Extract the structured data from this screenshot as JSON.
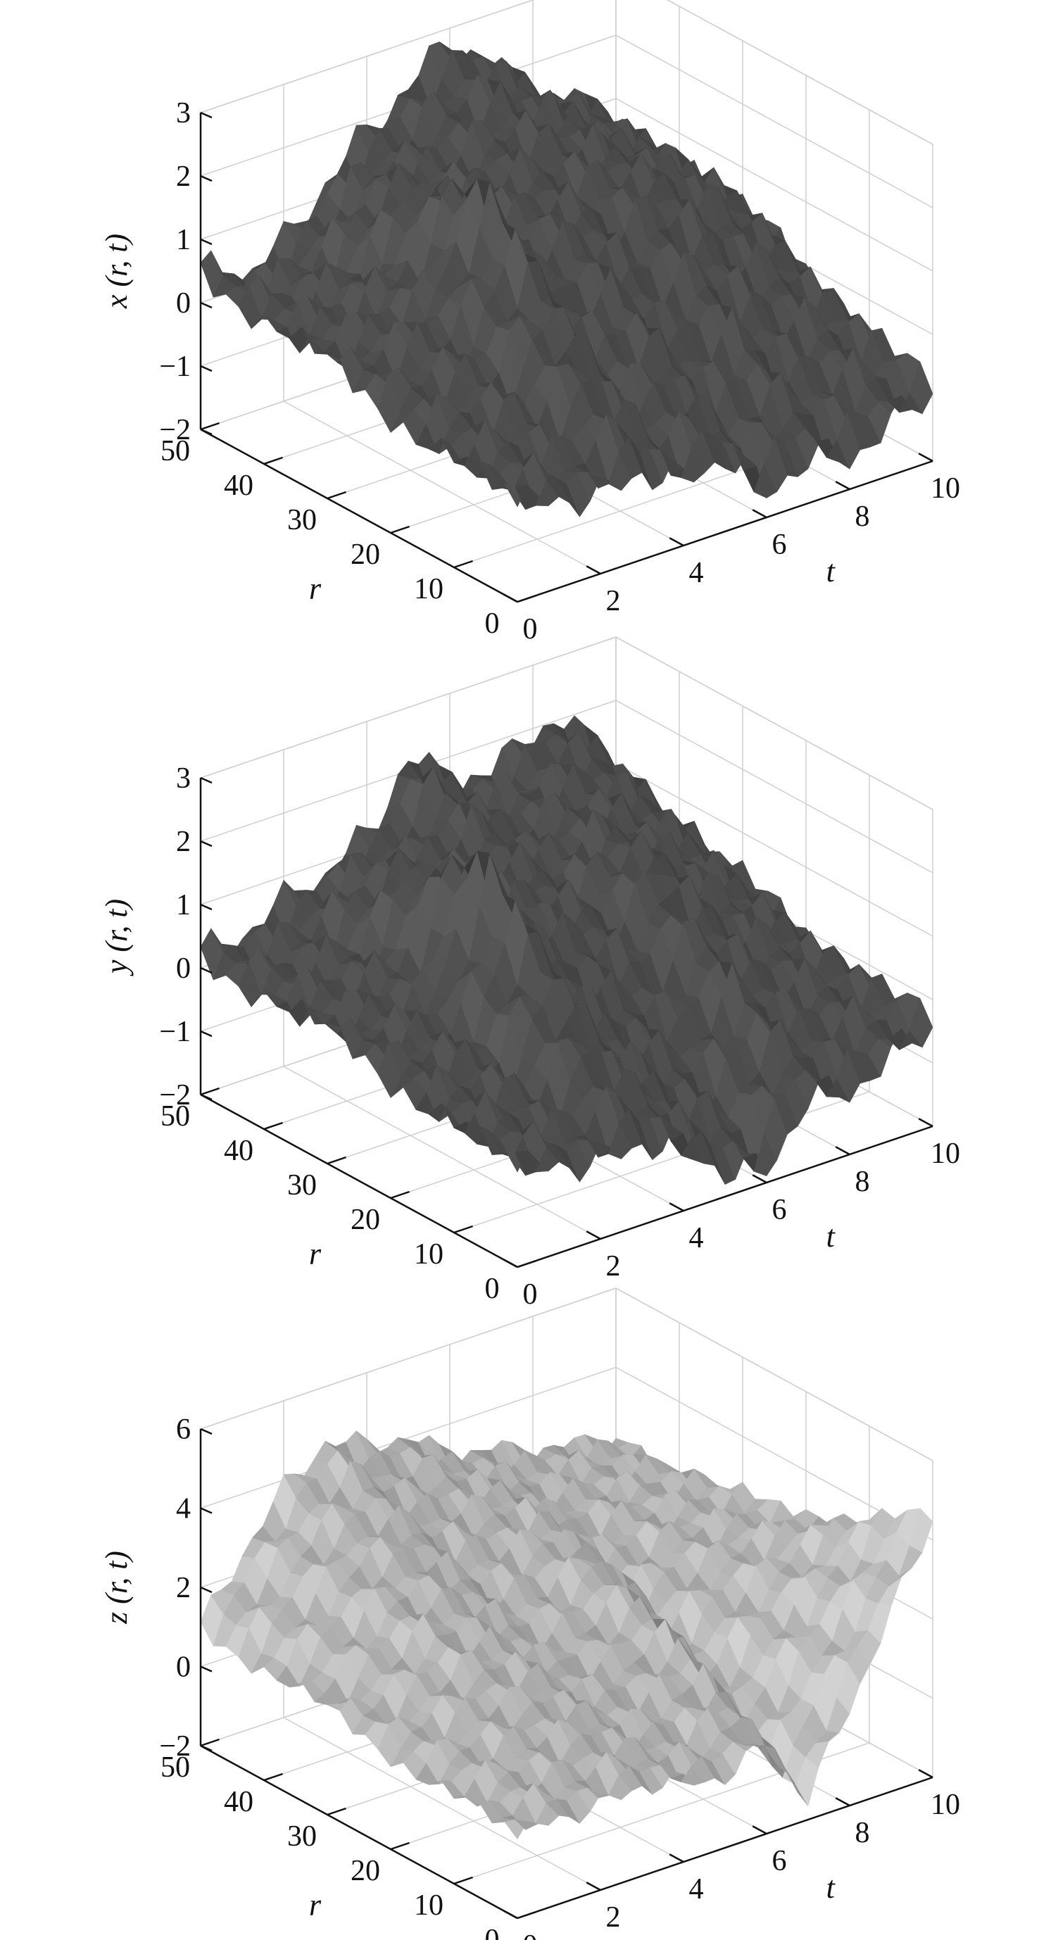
{
  "chart_data": [
    {
      "type": "surface",
      "zlabel": "x (r, t)",
      "xlabel": "t",
      "ylabel": "r",
      "t_ticks": [
        "0",
        "2",
        "4",
        "6",
        "8",
        "10"
      ],
      "r_ticks": [
        "0",
        "10",
        "20",
        "30",
        "40",
        "50"
      ],
      "z_ticks": [
        "−2",
        "−1",
        "0",
        "1",
        "2",
        "3"
      ],
      "xlim": [
        0,
        10
      ],
      "ylim": [
        0,
        50
      ],
      "zlim": [
        -2,
        3
      ],
      "grid": true,
      "surface_color": "#4a4a4a",
      "surface_samples": {
        "description_free": true,
        "t": [
          0,
          1,
          2,
          3,
          4,
          5,
          6,
          7,
          8,
          9,
          10
        ],
        "z_at_r50": [
          0.5,
          0.2,
          0.5,
          1.2,
          1.8,
          2.3,
          2.8,
          2.2,
          1.5,
          1.2,
          0.5
        ],
        "z_at_r25": [
          0.0,
          0.5,
          1.0,
          2.5,
          1.3,
          1.5,
          1.3,
          1.6,
          1.4,
          1.0,
          0.2
        ],
        "z_at_r0": [
          -0.5,
          -0.6,
          -0.8,
          -0.6,
          -1.0,
          -0.8,
          -1.6,
          -1.3,
          -1.5,
          -1.2,
          -0.9
        ]
      }
    },
    {
      "type": "surface",
      "zlabel": "y (r, t)",
      "xlabel": "t",
      "ylabel": "r",
      "t_ticks": [
        "0",
        "2",
        "4",
        "6",
        "8",
        "10"
      ],
      "r_ticks": [
        "0",
        "10",
        "20",
        "30",
        "40",
        "50"
      ],
      "z_ticks": [
        "−2",
        "−1",
        "0",
        "1",
        "2",
        "3"
      ],
      "xlim": [
        0,
        10
      ],
      "ylim": [
        0,
        50
      ],
      "zlim": [
        -2,
        3
      ],
      "grid": true,
      "surface_color": "#4a4a4a",
      "surface_samples": {
        "t": [
          0,
          1,
          2,
          3,
          4,
          5,
          6,
          7,
          8,
          9,
          10
        ],
        "z_at_r50": [
          0.2,
          0.3,
          0.6,
          0.8,
          1.2,
          2.2,
          1.6,
          1.5,
          2.0,
          1.8,
          0.8
        ],
        "z_at_r25": [
          0.0,
          0.2,
          0.4,
          2.4,
          1.2,
          1.0,
          0.8,
          1.5,
          1.0,
          0.6,
          0.1
        ],
        "z_at_r0": [
          -0.5,
          -0.6,
          -0.8,
          -0.7,
          -1.0,
          -1.6,
          -1.8,
          -0.9,
          -1.0,
          -0.7,
          -0.4
        ]
      }
    },
    {
      "type": "surface",
      "zlabel": "z (r, t)",
      "xlabel": "t",
      "ylabel": "r",
      "t_ticks": [
        "0",
        "2",
        "4",
        "6",
        "8",
        "10"
      ],
      "r_ticks": [
        "0",
        "10",
        "20",
        "30",
        "40",
        "50"
      ],
      "z_ticks": [
        "−2",
        "0",
        "2",
        "4",
        "6"
      ],
      "xlim": [
        0,
        10
      ],
      "ylim": [
        0,
        50
      ],
      "zlim": [
        -2,
        6
      ],
      "grid": true,
      "surface_color": "#a8a8a8",
      "surface_samples": {
        "t": [
          0,
          1,
          2,
          3,
          4,
          5,
          6,
          7,
          8,
          9,
          10
        ],
        "z_at_r50": [
          1.0,
          2.5,
          3.8,
          4.6,
          4.2,
          4.0,
          3.2,
          3.0,
          2.6,
          2.4,
          2.2
        ],
        "z_at_r25": [
          0.5,
          1.2,
          2.0,
          2.0,
          1.5,
          1.8,
          2.6,
          1.2,
          2.0,
          2.4,
          2.6
        ],
        "z_at_r0": [
          0.0,
          0.2,
          0.1,
          0.3,
          0.0,
          -0.2,
          0.2,
          -1.5,
          0.5,
          2.5,
          4.5
        ]
      }
    }
  ]
}
